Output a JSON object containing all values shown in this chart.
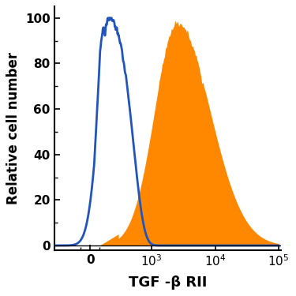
{
  "title": "TGF -β RII",
  "ylabel": "Relative cell number",
  "yticks": [
    0,
    20,
    40,
    60,
    80,
    100
  ],
  "ylim": [
    -2,
    105
  ],
  "background_color": "#ffffff",
  "blue_color": "#2255bb",
  "orange_color": "#ff8800",
  "title_fontsize": 13,
  "label_fontsize": 12,
  "tick_fontsize": 11,
  "linthresh": 300,
  "linscale": 0.4
}
